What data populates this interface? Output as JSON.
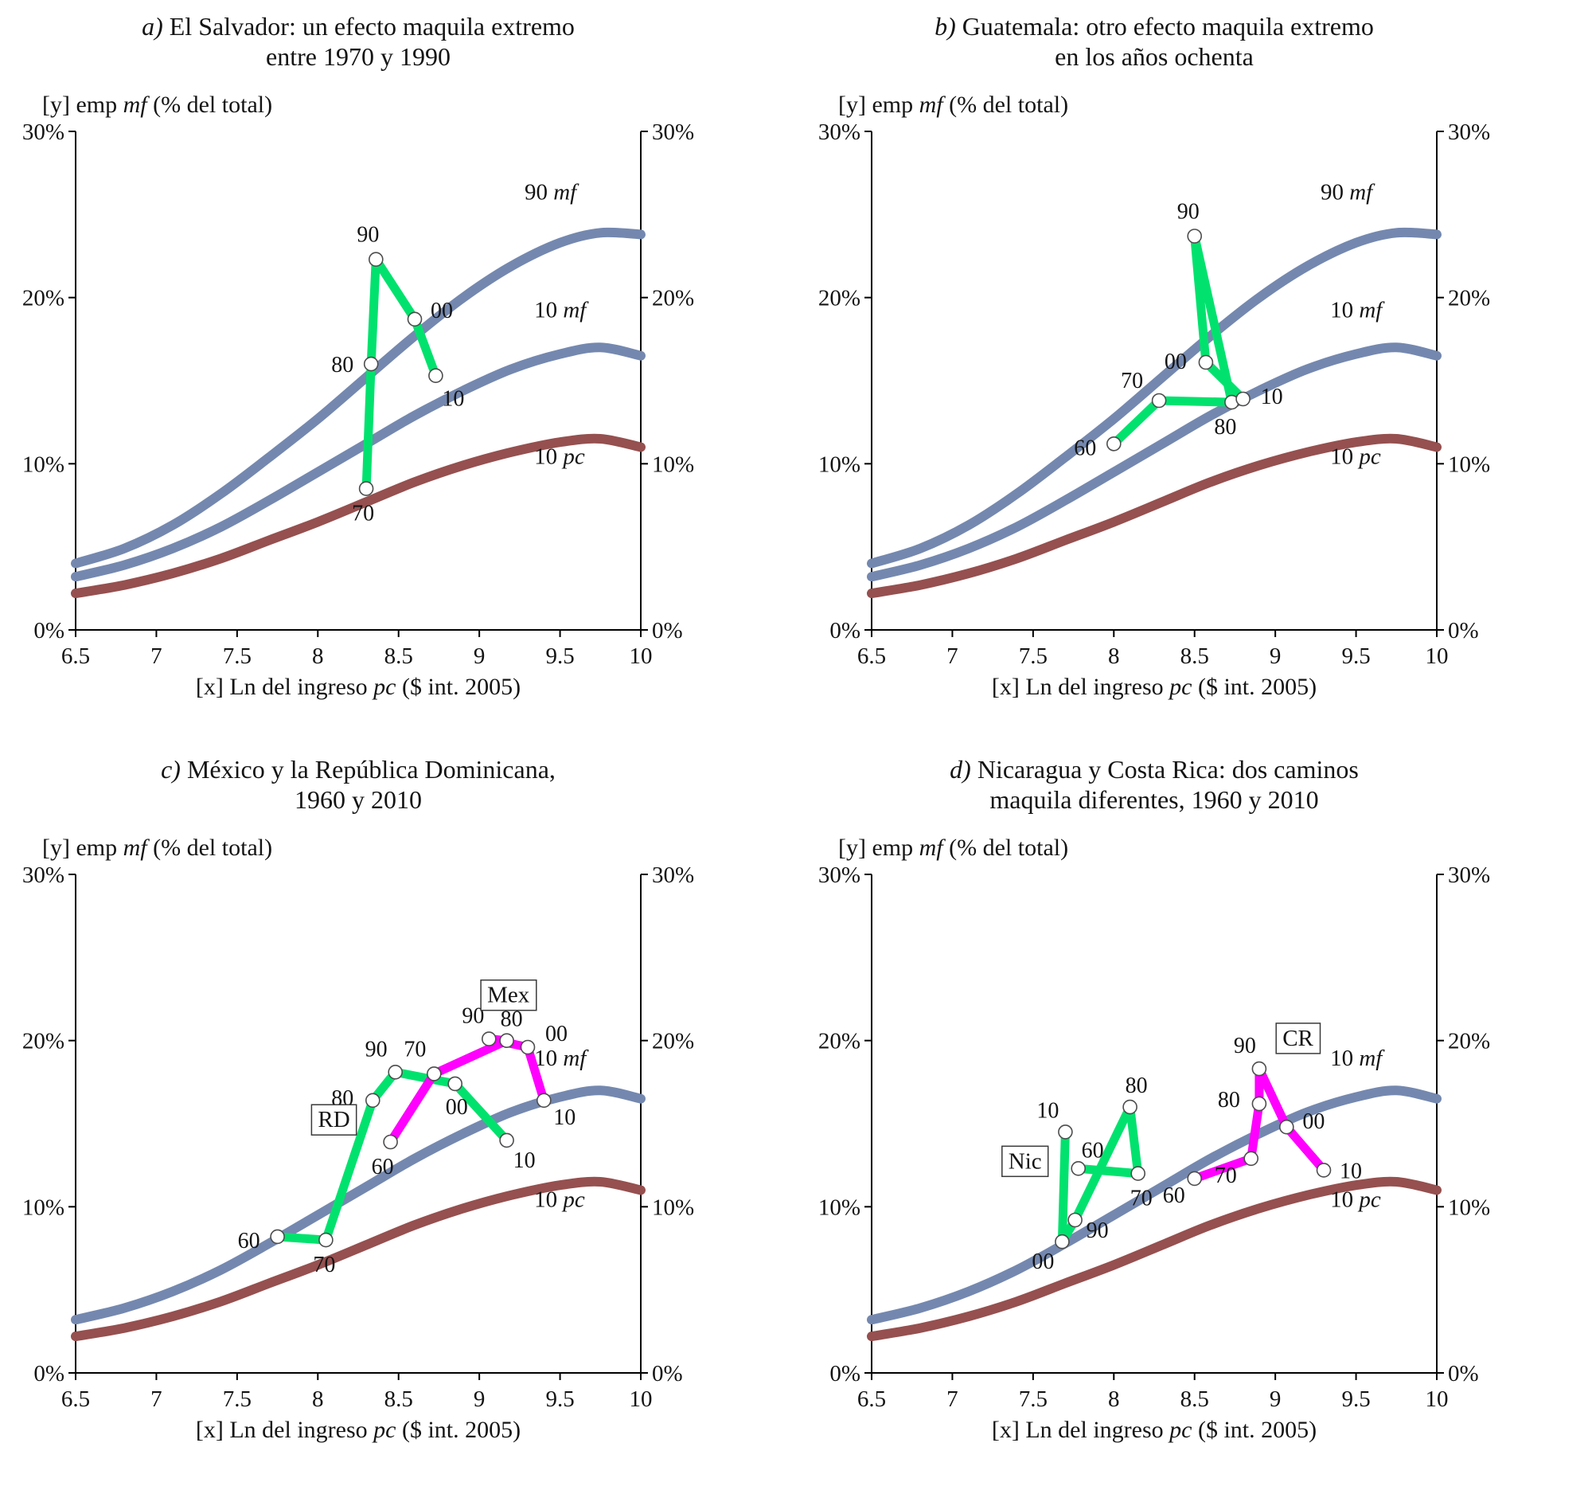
{
  "figure": {
    "background": "#ffffff",
    "colors": {
      "blue": "#7488AF",
      "maroon": "#95504F",
      "green": "#00E26D",
      "magenta": "#FF00FF",
      "axis": "#000000",
      "text": "#141414",
      "marker_fill": "#FFFFFF",
      "marker_stroke": "#4D4D4D"
    },
    "y_title": [
      {
        "t": "[y] emp "
      },
      {
        "t": "mf",
        "i": true
      },
      {
        "t": " (% del total)"
      }
    ],
    "x_title": [
      {
        "t": "[x] Ln del ingreso "
      },
      {
        "t": "pc",
        "i": true
      },
      {
        "t": " ($ int. 2005)"
      }
    ],
    "axes": {
      "xlim": [
        6.5,
        10
      ],
      "ylim": [
        0,
        30
      ],
      "x_tick_values": [
        6.5,
        7,
        7.5,
        8,
        8.5,
        9,
        9.5,
        10
      ],
      "x_tick_labels": [
        "6.5",
        "7",
        "7.5",
        "8",
        "8.5",
        "9",
        "9.5",
        "10"
      ],
      "y_tick_values": [
        0,
        10,
        20,
        30
      ],
      "y_tick_labels": [
        "0%",
        "10%",
        "20%",
        "30%"
      ],
      "grid": false
    },
    "reference_curves": {
      "mf90": {
        "name": "90 mf",
        "points": [
          [
            6.5,
            4.0
          ],
          [
            6.8,
            4.9
          ],
          [
            7.1,
            6.3
          ],
          [
            7.4,
            8.2
          ],
          [
            7.7,
            10.4
          ],
          [
            8.0,
            12.7
          ],
          [
            8.3,
            15.2
          ],
          [
            8.6,
            17.7
          ],
          [
            8.9,
            20.0
          ],
          [
            9.2,
            21.9
          ],
          [
            9.5,
            23.3
          ],
          [
            9.75,
            23.9
          ],
          [
            10,
            23.8
          ]
        ]
      },
      "mf10": {
        "name": "10 mf",
        "points": [
          [
            6.5,
            3.2
          ],
          [
            6.8,
            3.9
          ],
          [
            7.1,
            4.9
          ],
          [
            7.4,
            6.2
          ],
          [
            7.7,
            7.8
          ],
          [
            8.0,
            9.5
          ],
          [
            8.3,
            11.2
          ],
          [
            8.6,
            12.9
          ],
          [
            8.9,
            14.4
          ],
          [
            9.2,
            15.7
          ],
          [
            9.5,
            16.6
          ],
          [
            9.75,
            17.0
          ],
          [
            10,
            16.5
          ]
        ]
      },
      "pc10": {
        "name": "10 pc",
        "points": [
          [
            6.5,
            2.2
          ],
          [
            6.8,
            2.7
          ],
          [
            7.1,
            3.4
          ],
          [
            7.4,
            4.3
          ],
          [
            7.7,
            5.4
          ],
          [
            8.0,
            6.5
          ],
          [
            8.3,
            7.7
          ],
          [
            8.6,
            8.9
          ],
          [
            8.9,
            9.9
          ],
          [
            9.2,
            10.7
          ],
          [
            9.5,
            11.3
          ],
          [
            9.75,
            11.5
          ],
          [
            10,
            11.0
          ]
        ]
      }
    }
  },
  "chart_data": [
    {
      "id": "a",
      "type": "line",
      "title_line1": [
        {
          "t": "a) ",
          "i": true
        },
        {
          "t": "El Salvador: un efecto maquila extremo"
        }
      ],
      "title_line2": "entre 1970 y 1990",
      "curves": [
        {
          "key": "mf90",
          "color": "blue",
          "label": {
            "x": 9.28,
            "y": 25.9,
            "parts": [
              {
                "t": "90 "
              },
              {
                "t": "mf",
                "i": true
              }
            ]
          }
        },
        {
          "key": "mf10",
          "color": "blue",
          "label": {
            "x": 9.34,
            "y": 18.8,
            "parts": [
              {
                "t": "10 "
              },
              {
                "t": "mf",
                "i": true
              }
            ]
          }
        },
        {
          "key": "pc10",
          "color": "maroon",
          "label": {
            "x": 9.34,
            "y": 10.0,
            "parts": [
              {
                "t": "10 "
              },
              {
                "t": "pc",
                "i": true
              }
            ]
          }
        }
      ],
      "series": [
        {
          "name": "El Salvador",
          "color": "green",
          "points": [
            {
              "x": 8.3,
              "y": 8.5,
              "label": "70",
              "dx": -4,
              "dy": 40
            },
            {
              "x": 8.33,
              "y": 16.0,
              "label": "80",
              "dx": -36,
              "dy": 10
            },
            {
              "x": 8.36,
              "y": 22.3,
              "label": "90",
              "dx": -10,
              "dy": -22
            },
            {
              "x": 8.6,
              "y": 18.7,
              "label": "00",
              "dx": 34,
              "dy": -2
            },
            {
              "x": 8.73,
              "y": 15.3,
              "label": "10",
              "dx": 22,
              "dy": 38
            }
          ]
        }
      ],
      "annotations": []
    },
    {
      "id": "b",
      "type": "line",
      "title_line1": [
        {
          "t": "b) ",
          "i": true
        },
        {
          "t": "Guatemala: otro efecto maquila extremo"
        }
      ],
      "title_line2": "en los años ochenta",
      "curves": [
        {
          "key": "mf90",
          "color": "blue",
          "label": {
            "x": 9.28,
            "y": 25.9,
            "parts": [
              {
                "t": "90 "
              },
              {
                "t": "mf",
                "i": true
              }
            ]
          }
        },
        {
          "key": "mf10",
          "color": "blue",
          "label": {
            "x": 9.34,
            "y": 18.8,
            "parts": [
              {
                "t": "10 "
              },
              {
                "t": "mf",
                "i": true
              }
            ]
          }
        },
        {
          "key": "pc10",
          "color": "maroon",
          "label": {
            "x": 9.34,
            "y": 10.0,
            "parts": [
              {
                "t": "10 "
              },
              {
                "t": "pc",
                "i": true
              }
            ]
          }
        }
      ],
      "series": [
        {
          "name": "Guatemala",
          "color": "green",
          "points": [
            {
              "x": 8.0,
              "y": 11.2,
              "label": "60",
              "dx": -36,
              "dy": 14
            },
            {
              "x": 8.28,
              "y": 13.8,
              "label": "70",
              "dx": -34,
              "dy": -16
            },
            {
              "x": 8.73,
              "y": 13.7,
              "label": "80",
              "dx": -8,
              "dy": 40
            },
            {
              "x": 8.5,
              "y": 23.7,
              "label": "90",
              "dx": -8,
              "dy": -22
            },
            {
              "x": 8.57,
              "y": 16.1,
              "label": "00",
              "dx": -38,
              "dy": 8
            },
            {
              "x": 8.8,
              "y": 13.9,
              "label": "10",
              "dx": 36,
              "dy": 6
            }
          ]
        }
      ],
      "annotations": []
    },
    {
      "id": "c",
      "type": "line",
      "title_line1": [
        {
          "t": "c) ",
          "i": true
        },
        {
          "t": "México y la República Dominicana,"
        }
      ],
      "title_line2": "1960 y 2010",
      "curves": [
        {
          "key": "mf10",
          "color": "blue",
          "label": {
            "x": 9.34,
            "y": 18.5,
            "parts": [
              {
                "t": "10 "
              },
              {
                "t": "mf",
                "i": true
              }
            ]
          }
        },
        {
          "key": "pc10",
          "color": "maroon",
          "label": {
            "x": 9.34,
            "y": 10.0,
            "parts": [
              {
                "t": "10 "
              },
              {
                "t": "pc",
                "i": true
              }
            ]
          }
        }
      ],
      "series": [
        {
          "name": "RD",
          "color": "green",
          "points": [
            {
              "x": 7.75,
              "y": 8.2,
              "label": "60",
              "dx": -36,
              "dy": 14
            },
            {
              "x": 8.05,
              "y": 8.0,
              "label": "70",
              "dx": -2,
              "dy": 40
            },
            {
              "x": 8.34,
              "y": 16.4,
              "label": "80",
              "dx": -38,
              "dy": 6
            },
            {
              "x": 8.48,
              "y": 18.1,
              "label": "90",
              "dx": -24,
              "dy": -20
            },
            {
              "x": 8.85,
              "y": 17.4,
              "label": "00",
              "dx": 2,
              "dy": 38
            },
            {
              "x": 9.17,
              "y": 14.0,
              "label": "10",
              "dx": 22,
              "dy": 34
            }
          ]
        },
        {
          "name": "Mex",
          "color": "magenta",
          "points": [
            {
              "x": 8.45,
              "y": 13.9,
              "label": "60",
              "dx": -10,
              "dy": 40
            },
            {
              "x": 8.72,
              "y": 18.0,
              "label": "70",
              "dx": -24,
              "dy": -22
            },
            {
              "x": 9.17,
              "y": 20.0,
              "label": "80",
              "dx": 6,
              "dy": -18
            },
            {
              "x": 9.06,
              "y": 20.1,
              "label": "90",
              "dx": -20,
              "dy": -20
            },
            {
              "x": 9.3,
              "y": 19.6,
              "label": "00",
              "dx": 36,
              "dy": -8
            },
            {
              "x": 9.4,
              "y": 16.4,
              "label": "10",
              "dx": 26,
              "dy": 30
            }
          ]
        }
      ],
      "annotations": [
        {
          "text": "Mex",
          "x": 9.18,
          "y": 22.3
        },
        {
          "text": "RD",
          "x": 8.1,
          "y": 14.8
        }
      ]
    },
    {
      "id": "d",
      "type": "line",
      "title_line1": [
        {
          "t": "d) ",
          "i": true
        },
        {
          "t": "Nicaragua y Costa Rica: dos caminos"
        }
      ],
      "title_line2": "maquila diferentes, 1960 y 2010",
      "curves": [
        {
          "key": "mf10",
          "color": "blue",
          "label": {
            "x": 9.34,
            "y": 18.5,
            "parts": [
              {
                "t": "10 "
              },
              {
                "t": "mf",
                "i": true
              }
            ]
          }
        },
        {
          "key": "pc10",
          "color": "maroon",
          "label": {
            "x": 9.34,
            "y": 10.0,
            "parts": [
              {
                "t": "10 "
              },
              {
                "t": "pc",
                "i": true
              }
            ]
          }
        }
      ],
      "series": [
        {
          "name": "Nic",
          "color": "green",
          "points": [
            {
              "x": 7.78,
              "y": 12.3,
              "label": "60",
              "dx": 18,
              "dy": -14
            },
            {
              "x": 8.15,
              "y": 12.0,
              "label": "70",
              "dx": 4,
              "dy": 40
            },
            {
              "x": 8.1,
              "y": 16.0,
              "label": "80",
              "dx": 8,
              "dy": -18
            },
            {
              "x": 7.76,
              "y": 9.2,
              "label": "90",
              "dx": 28,
              "dy": 22
            },
            {
              "x": 7.68,
              "y": 7.9,
              "label": "00",
              "dx": -24,
              "dy": 34
            },
            {
              "x": 7.7,
              "y": 14.5,
              "label": "10",
              "dx": -22,
              "dy": -18
            }
          ]
        },
        {
          "name": "CR",
          "color": "magenta",
          "points": [
            {
              "x": 8.5,
              "y": 11.7,
              "label": "60",
              "dx": -26,
              "dy": 30
            },
            {
              "x": 8.85,
              "y": 12.9,
              "label": "70",
              "dx": -32,
              "dy": 30
            },
            {
              "x": 8.9,
              "y": 16.2,
              "label": "80",
              "dx": -38,
              "dy": 4
            },
            {
              "x": 8.9,
              "y": 18.3,
              "label": "90",
              "dx": -18,
              "dy": -20
            },
            {
              "x": 9.07,
              "y": 14.8,
              "label": "00",
              "dx": 34,
              "dy": 2
            },
            {
              "x": 9.3,
              "y": 12.2,
              "label": "10",
              "dx": 34,
              "dy": 10
            }
          ]
        }
      ],
      "annotations": [
        {
          "text": "Nic",
          "x": 7.45,
          "y": 12.3
        },
        {
          "text": "CR",
          "x": 9.14,
          "y": 19.7
        }
      ]
    }
  ]
}
